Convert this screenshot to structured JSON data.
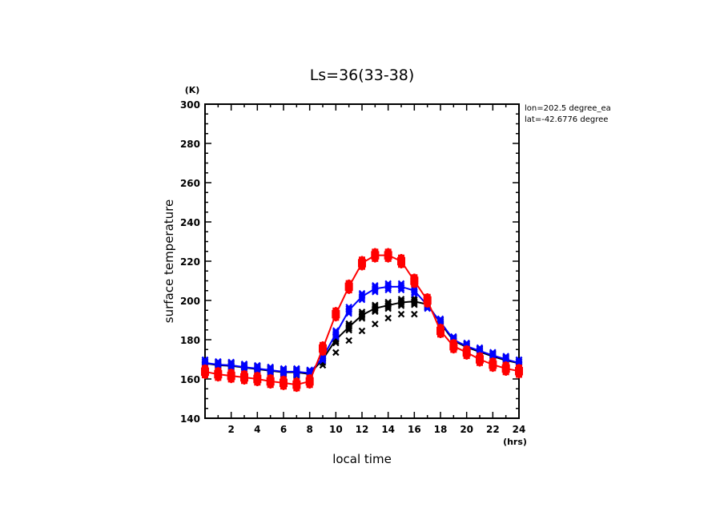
{
  "chart_data": {
    "type": "line",
    "title": "Ls=36(33-38)",
    "xlabel": "local time",
    "ylabel": "surface temperature",
    "x_unit": "(hrs)",
    "y_unit": "(K)",
    "xlim": [
      0,
      24
    ],
    "ylim": [
      140,
      300
    ],
    "x_ticks": [
      2,
      4,
      6,
      8,
      10,
      12,
      14,
      16,
      18,
      20,
      22,
      24
    ],
    "y_ticks": [
      140,
      160,
      180,
      200,
      220,
      240,
      260,
      280,
      300
    ],
    "grid": false,
    "annotations": [
      "lon=202.5 degree_ea",
      "lat=-42.6776 degree"
    ],
    "x": [
      0,
      1,
      2,
      3,
      4,
      5,
      6,
      7,
      8,
      9,
      10,
      11,
      12,
      13,
      14,
      15,
      16,
      17,
      18,
      19,
      20,
      21,
      22,
      23,
      24
    ],
    "series": [
      {
        "name": "red",
        "color": "#ff0000",
        "marker": "plus",
        "values": [
          163.7,
          162.4,
          161.6,
          160.8,
          160.0,
          158.8,
          158.0,
          157.1,
          158.8,
          175.5,
          193,
          207,
          219,
          223,
          223,
          220,
          210,
          200,
          184.5,
          176.7,
          173.5,
          170,
          167.3,
          165.3,
          164
        ]
      },
      {
        "name": "blue",
        "color": "#0000ff",
        "marker": "x",
        "values": [
          168.2,
          167.3,
          167,
          166,
          165.3,
          164.5,
          163.7,
          163.7,
          163,
          171,
          183,
          195,
          202,
          206,
          207,
          207,
          205,
          197.5,
          189,
          180,
          176.7,
          174.3,
          172,
          170,
          168.2
        ]
      },
      {
        "name": "black",
        "color": "#000000",
        "marker": "x",
        "values": [
          168,
          167,
          166.7,
          165.8,
          165,
          164.2,
          163.4,
          163.4,
          162.5,
          170,
          180,
          186.5,
          192.5,
          196,
          197.5,
          199,
          199.5,
          198,
          188.5,
          179.5,
          176.2,
          173.8,
          171.5,
          169.5,
          168
        ]
      },
      {
        "name": "black-scatter",
        "color": "#000000",
        "marker": "x",
        "line": false,
        "x": [
          9,
          10,
          11,
          12,
          13,
          14,
          15,
          16
        ],
        "values": [
          167,
          173.5,
          179.6,
          184.5,
          188,
          191,
          193,
          193
        ]
      }
    ]
  }
}
